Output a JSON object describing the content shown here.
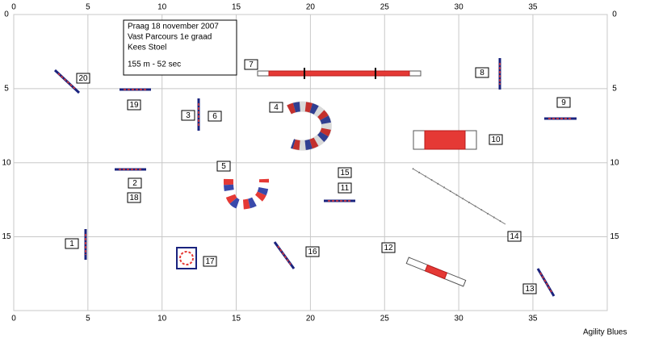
{
  "x_ticks": [
    0,
    5,
    10,
    15,
    20,
    25,
    30,
    35
  ],
  "y_ticks": [
    0,
    5,
    10,
    15
  ],
  "info": [
    "Praag 18 november 2007",
    "Vast Parcours 1e graad",
    "Kees Stoel",
    "155 m - 52 sec"
  ],
  "obstacles": [
    "1",
    "2",
    "3",
    "4",
    "5",
    "6",
    "7",
    "8",
    "9",
    "10",
    "11",
    "12",
    "13",
    "14",
    "15",
    "16",
    "17",
    "18",
    "19",
    "20"
  ],
  "footer": "Agility Blues"
}
